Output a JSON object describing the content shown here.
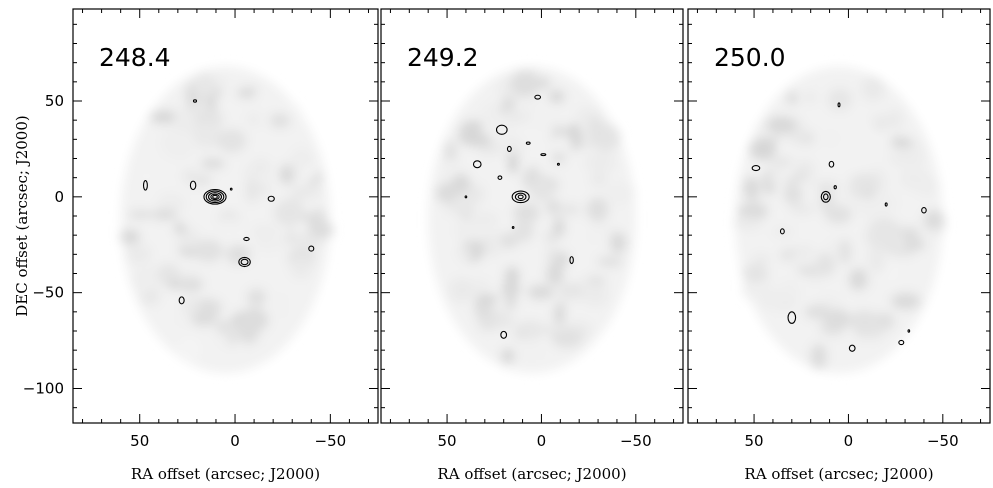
{
  "chart_data": {
    "type": "contour",
    "shared": {
      "xlabel": "RA offset (arcsec; J2000)",
      "ylabel": "DEC offset (arcsec; J2000)",
      "xlim": [
        85,
        -75
      ],
      "ylim": [
        -118,
        98
      ],
      "x_ticks": [
        50,
        0,
        -50
      ],
      "x_tick_labels": [
        "50",
        "0",
        "−50"
      ],
      "y_ticks": [
        50,
        0,
        -50,
        -100
      ],
      "y_tick_labels": [
        "50",
        "0",
        "−50",
        "−100"
      ],
      "grayscale_noise_field": true,
      "map_extent": {
        "ra_range": [
          60,
          -50
        ],
        "dec_range": [
          -92,
          68
        ]
      }
    },
    "panels": [
      {
        "label": "248.4",
        "contours": [
          {
            "ra": 10.5,
            "dec": 0.0,
            "rx": [
              5.8,
              4.6,
              3.4,
              2.2,
              1.2
            ],
            "ry": [
              3.8,
              3.0,
              2.2,
              1.4,
              0.8
            ]
          },
          {
            "ra": 21.0,
            "dec": 50.0,
            "rx": [
              0.8
            ],
            "ry": [
              0.6
            ]
          },
          {
            "ra": -19.0,
            "dec": -1.0,
            "rx": [
              1.6
            ],
            "ry": [
              1.3
            ]
          },
          {
            "ra": -5.0,
            "dec": -34.0,
            "rx": [
              3.0,
              1.8
            ],
            "ry": [
              2.4,
              1.4
            ]
          },
          {
            "ra": -6.0,
            "dec": -22.0,
            "rx": [
              1.4
            ],
            "ry": [
              0.8
            ]
          },
          {
            "ra": 28.0,
            "dec": -54.0,
            "rx": [
              1.3
            ],
            "ry": [
              1.8
            ]
          },
          {
            "ra": -40.0,
            "dec": -27.0,
            "rx": [
              1.3
            ],
            "ry": [
              1.3
            ]
          },
          {
            "ra": 22.0,
            "dec": 6.0,
            "rx": [
              1.4
            ],
            "ry": [
              2.2
            ]
          },
          {
            "ra": 47.0,
            "dec": 6.0,
            "rx": [
              1.0
            ],
            "ry": [
              2.5
            ]
          },
          {
            "ra": 2.0,
            "dec": 4.0,
            "rx": [
              0.4
            ],
            "ry": [
              0.5
            ]
          }
        ]
      },
      {
        "label": "249.2",
        "contours": [
          {
            "ra": 11.0,
            "dec": 0.0,
            "rx": [
              4.5,
              2.8,
              1.3
            ],
            "ry": [
              3.0,
              1.9,
              0.9
            ]
          },
          {
            "ra": 21.0,
            "dec": 35.0,
            "rx": [
              2.8
            ],
            "ry": [
              2.4
            ]
          },
          {
            "ra": 34.0,
            "dec": 17.0,
            "rx": [
              2.0
            ],
            "ry": [
              1.8
            ]
          },
          {
            "ra": 2.0,
            "dec": 52.0,
            "rx": [
              1.5
            ],
            "ry": [
              1.0
            ]
          },
          {
            "ra": 17.0,
            "dec": 25.0,
            "rx": [
              1.0
            ],
            "ry": [
              1.3
            ]
          },
          {
            "ra": 22.0,
            "dec": 10.0,
            "rx": [
              1.0
            ],
            "ry": [
              0.9
            ]
          },
          {
            "ra": -16.0,
            "dec": -33.0,
            "rx": [
              0.9
            ],
            "ry": [
              1.8
            ]
          },
          {
            "ra": 20.0,
            "dec": -72.0,
            "rx": [
              1.5
            ],
            "ry": [
              1.8
            ]
          },
          {
            "ra": 7.0,
            "dec": 28.0,
            "rx": [
              1.0
            ],
            "ry": [
              0.6
            ]
          },
          {
            "ra": -1.0,
            "dec": 22.0,
            "rx": [
              1.3
            ],
            "ry": [
              0.5
            ]
          },
          {
            "ra": -9.0,
            "dec": 17.0,
            "rx": [
              0.5
            ],
            "ry": [
              0.5
            ]
          },
          {
            "ra": 40.0,
            "dec": 0.0,
            "rx": [
              0.4
            ],
            "ry": [
              0.5
            ]
          },
          {
            "ra": 15.0,
            "dec": -16.0,
            "rx": [
              0.4
            ],
            "ry": [
              0.5
            ]
          }
        ]
      },
      {
        "label": "250.0",
        "contours": [
          {
            "ra": 12.0,
            "dec": 0.0,
            "rx": [
              2.4,
              1.2
            ],
            "ry": [
              2.8,
              1.5
            ]
          },
          {
            "ra": 49.0,
            "dec": 15.0,
            "rx": [
              2.0
            ],
            "ry": [
              1.3
            ]
          },
          {
            "ra": 35.0,
            "dec": -18.0,
            "rx": [
              1.0
            ],
            "ry": [
              1.3
            ]
          },
          {
            "ra": -2.0,
            "dec": -79.0,
            "rx": [
              1.5
            ],
            "ry": [
              1.6
            ]
          },
          {
            "ra": -28.0,
            "dec": -76.0,
            "rx": [
              1.3
            ],
            "ry": [
              1.1
            ]
          },
          {
            "ra": -40.0,
            "dec": -7.0,
            "rx": [
              1.2
            ],
            "ry": [
              1.4
            ]
          },
          {
            "ra": 5.0,
            "dec": 48.0,
            "rx": [
              0.5
            ],
            "ry": [
              1.0
            ]
          },
          {
            "ra": 9.0,
            "dec": 17.0,
            "rx": [
              1.2
            ],
            "ry": [
              1.5
            ]
          },
          {
            "ra": 7.0,
            "dec": 5.0,
            "rx": [
              0.6
            ],
            "ry": [
              0.8
            ]
          },
          {
            "ra": -20.0,
            "dec": -4.0,
            "rx": [
              0.5
            ],
            "ry": [
              0.8
            ]
          },
          {
            "ra": 30.0,
            "dec": -63.0,
            "rx": [
              2.0
            ],
            "ry": [
              3.0
            ]
          },
          {
            "ra": -32.0,
            "dec": -70.0,
            "rx": [
              0.4
            ],
            "ry": [
              0.6
            ]
          }
        ]
      }
    ]
  }
}
